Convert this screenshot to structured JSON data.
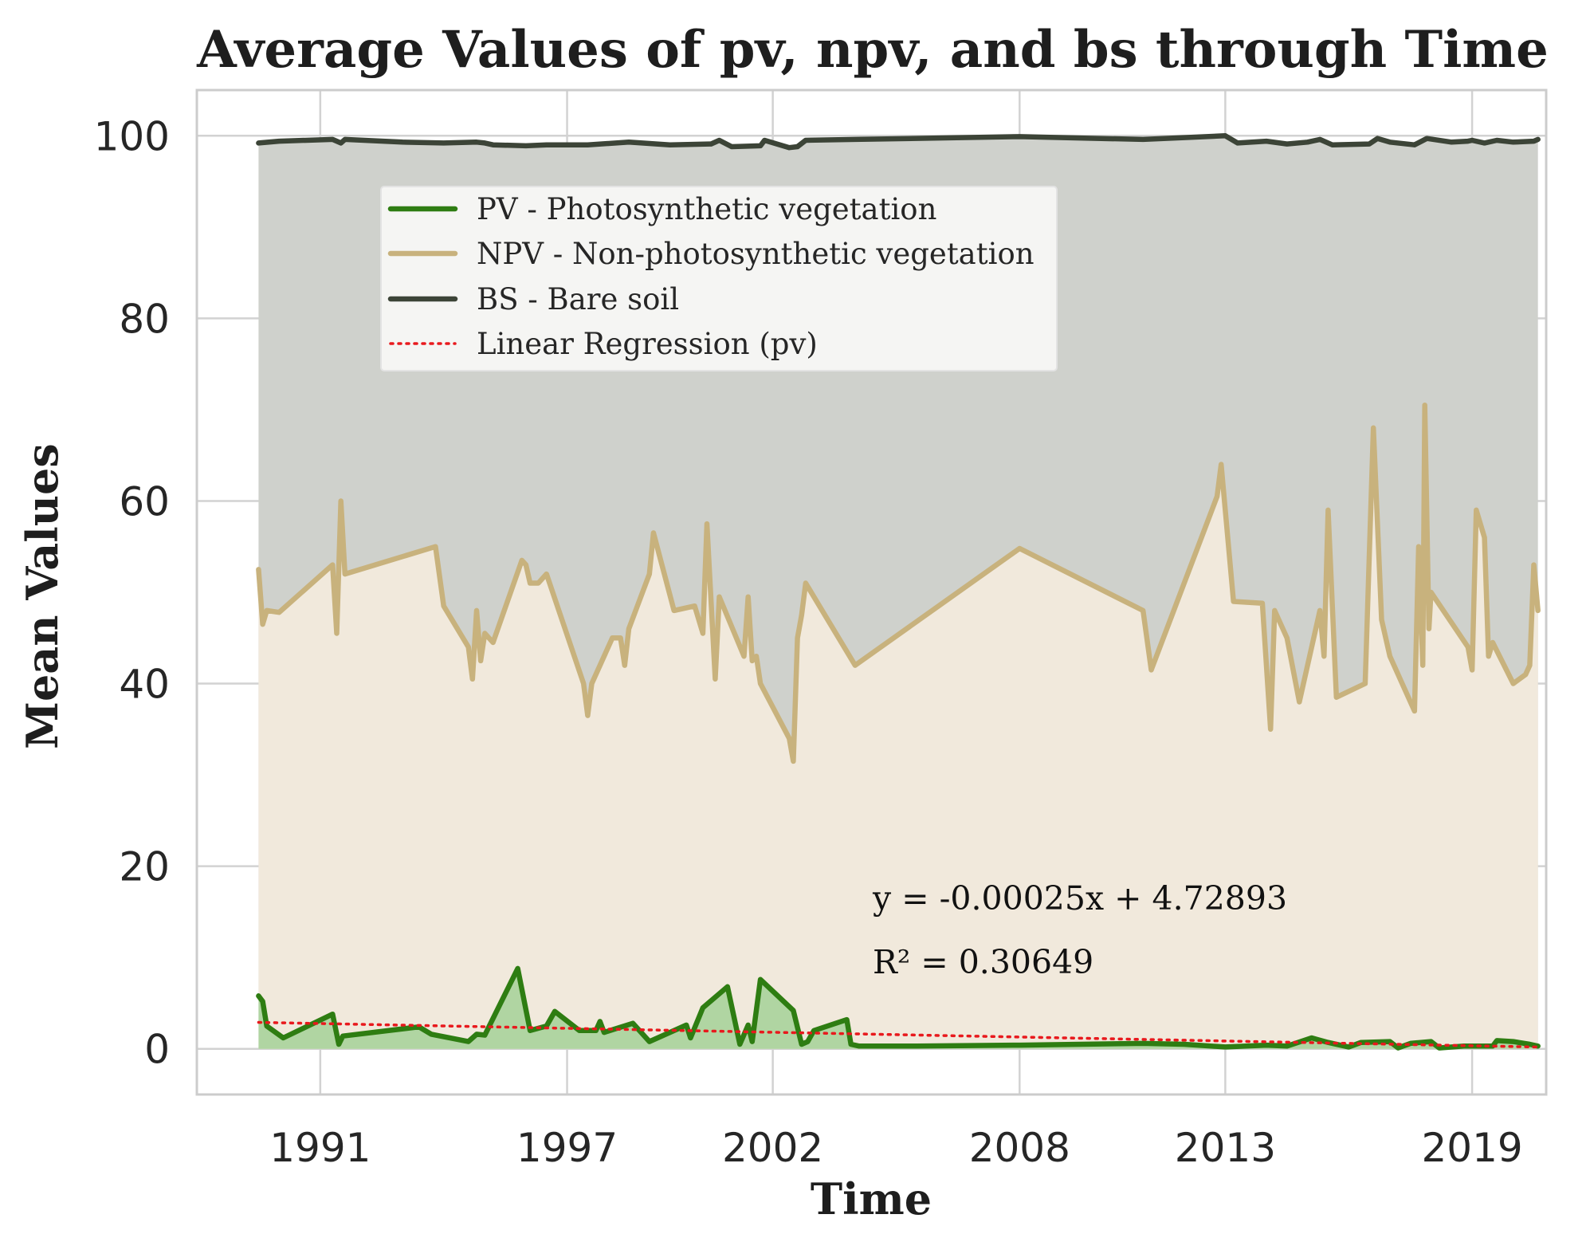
{
  "chart_data": {
    "type": "line",
    "title": "Average Values of pv, npv, and bs through Time",
    "xlabel": "Time",
    "ylabel": "Mean Values",
    "xlim": [
      1988.0,
      2020.8
    ],
    "ylim": [
      -5,
      105
    ],
    "xticks": [
      {
        "value": 1991,
        "label": "1991"
      },
      {
        "value": 1997,
        "label": "1997"
      },
      {
        "value": 2002,
        "label": "2002"
      },
      {
        "value": 2008,
        "label": "2008"
      },
      {
        "value": 2013,
        "label": "2013"
      },
      {
        "value": 2019,
        "label": "2019"
      }
    ],
    "yticks": [
      {
        "value": 0,
        "label": "0"
      },
      {
        "value": 20,
        "label": "20"
      },
      {
        "value": 40,
        "label": "40"
      },
      {
        "value": 60,
        "label": "60"
      },
      {
        "value": 80,
        "label": "80"
      },
      {
        "value": 100,
        "label": "100"
      }
    ],
    "grid": true,
    "legend_position": "upper-left",
    "series": [
      {
        "name": "PV - Photosynthetic vegetation",
        "key": "pv",
        "color": "#2e7d12",
        "fill": "#a8d39b",
        "points": [
          [
            1989.5,
            5.8
          ],
          [
            1989.6,
            5.2
          ],
          [
            1989.7,
            2.5
          ],
          [
            1990.1,
            1.2
          ],
          [
            1991.3,
            3.8
          ],
          [
            1991.45,
            0.5
          ],
          [
            1991.55,
            1.4
          ],
          [
            1993.4,
            2.4
          ],
          [
            1993.7,
            1.6
          ],
          [
            1994.6,
            0.8
          ],
          [
            1994.8,
            1.6
          ],
          [
            1995.0,
            1.5
          ],
          [
            1995.8,
            8.8
          ],
          [
            1996.1,
            2.0
          ],
          [
            1996.5,
            2.5
          ],
          [
            1996.7,
            4.1
          ],
          [
            1997.3,
            2.0
          ],
          [
            1997.7,
            2.0
          ],
          [
            1997.8,
            3.0
          ],
          [
            1997.9,
            1.8
          ],
          [
            1998.6,
            2.8
          ],
          [
            1999.0,
            0.8
          ],
          [
            1999.9,
            2.6
          ],
          [
            2000.0,
            1.2
          ],
          [
            2000.3,
            4.5
          ],
          [
            2000.9,
            6.8
          ],
          [
            2001.2,
            0.5
          ],
          [
            2001.4,
            2.6
          ],
          [
            2001.5,
            0.8
          ],
          [
            2001.7,
            7.6
          ],
          [
            2002.5,
            4.2
          ],
          [
            2002.7,
            0.5
          ],
          [
            2002.85,
            0.8
          ],
          [
            2003.0,
            2.0
          ],
          [
            2003.8,
            3.2
          ],
          [
            2003.9,
            0.5
          ],
          [
            2004.1,
            0.3
          ],
          [
            2005.5,
            0.3
          ],
          [
            2008.0,
            0.4
          ],
          [
            2011.0,
            0.6
          ],
          [
            2012.0,
            0.5
          ],
          [
            2013.0,
            0.2
          ],
          [
            2014.0,
            0.4
          ],
          [
            2014.5,
            0.3
          ],
          [
            2015.1,
            1.2
          ],
          [
            2015.5,
            0.7
          ],
          [
            2016.0,
            0.2
          ],
          [
            2016.3,
            0.7
          ],
          [
            2017.0,
            0.8
          ],
          [
            2017.2,
            0.1
          ],
          [
            2017.5,
            0.6
          ],
          [
            2018.0,
            0.8
          ],
          [
            2018.2,
            0.1
          ],
          [
            2018.8,
            0.3
          ],
          [
            2019.5,
            0.3
          ],
          [
            2019.6,
            0.9
          ],
          [
            2020.0,
            0.8
          ],
          [
            2020.4,
            0.5
          ],
          [
            2020.6,
            0.3
          ]
        ]
      },
      {
        "name": "NPV - Non-photosynthetic vegetation",
        "key": "npv",
        "color": "#c8b27d",
        "fill": "#f1e9dc",
        "points": [
          [
            1989.5,
            52.5
          ],
          [
            1989.6,
            46.5
          ],
          [
            1989.7,
            48.0
          ],
          [
            1990.0,
            47.8
          ],
          [
            1991.3,
            53.0
          ],
          [
            1991.4,
            45.5
          ],
          [
            1991.5,
            60.0
          ],
          [
            1991.6,
            52.0
          ],
          [
            1993.8,
            55.0
          ],
          [
            1994.0,
            48.5
          ],
          [
            1994.6,
            44.0
          ],
          [
            1994.7,
            40.5
          ],
          [
            1994.8,
            48.0
          ],
          [
            1994.9,
            42.5
          ],
          [
            1995.0,
            45.5
          ],
          [
            1995.2,
            44.5
          ],
          [
            1995.9,
            53.5
          ],
          [
            1996.0,
            53.0
          ],
          [
            1996.1,
            51.0
          ],
          [
            1996.3,
            51.0
          ],
          [
            1996.5,
            52.0
          ],
          [
            1997.4,
            40.0
          ],
          [
            1997.5,
            36.5
          ],
          [
            1997.6,
            40.0
          ],
          [
            1998.1,
            45.0
          ],
          [
            1998.3,
            45.0
          ],
          [
            1998.4,
            42.0
          ],
          [
            1998.5,
            46.0
          ],
          [
            1999.0,
            52.0
          ],
          [
            1999.1,
            56.5
          ],
          [
            1999.6,
            48.0
          ],
          [
            2000.1,
            48.5
          ],
          [
            2000.3,
            45.5
          ],
          [
            2000.4,
            57.5
          ],
          [
            2000.6,
            40.5
          ],
          [
            2000.7,
            49.5
          ],
          [
            2001.3,
            43.0
          ],
          [
            2001.4,
            49.5
          ],
          [
            2001.5,
            42.5
          ],
          [
            2001.6,
            43.0
          ],
          [
            2001.7,
            40.0
          ],
          [
            2002.4,
            34.0
          ],
          [
            2002.5,
            31.5
          ],
          [
            2002.6,
            45.0
          ],
          [
            2002.7,
            47.5
          ],
          [
            2002.8,
            51.0
          ],
          [
            2004.0,
            42.0
          ],
          [
            2008.0,
            54.8
          ],
          [
            2011.0,
            48.0
          ],
          [
            2011.2,
            41.5
          ],
          [
            2012.8,
            60.5
          ],
          [
            2012.9,
            64.0
          ],
          [
            2013.2,
            49.0
          ],
          [
            2013.9,
            48.8
          ],
          [
            2014.1,
            35.0
          ],
          [
            2014.2,
            48.0
          ],
          [
            2014.5,
            45.0
          ],
          [
            2014.8,
            38.0
          ],
          [
            2015.3,
            48.0
          ],
          [
            2015.4,
            43.0
          ],
          [
            2015.5,
            59.0
          ],
          [
            2015.7,
            38.5
          ],
          [
            2016.4,
            40.0
          ],
          [
            2016.6,
            68.0
          ],
          [
            2016.8,
            47.0
          ],
          [
            2017.0,
            43.0
          ],
          [
            2017.6,
            37.0
          ],
          [
            2017.7,
            55.0
          ],
          [
            2017.8,
            42.0
          ],
          [
            2017.85,
            70.5
          ],
          [
            2017.95,
            46.0
          ],
          [
            2018.0,
            50.0
          ],
          [
            2018.9,
            44.0
          ],
          [
            2019.0,
            41.5
          ],
          [
            2019.1,
            59.0
          ],
          [
            2019.3,
            56.0
          ],
          [
            2019.4,
            43.0
          ],
          [
            2019.5,
            44.5
          ],
          [
            2020.0,
            40.0
          ],
          [
            2020.3,
            41.0
          ],
          [
            2020.4,
            42.0
          ],
          [
            2020.5,
            53.0
          ],
          [
            2020.6,
            48.0
          ]
        ]
      },
      {
        "name": "BS - Bare soil",
        "key": "bs",
        "color": "#3c4437",
        "fill": "#cfd1cc",
        "points": [
          [
            1989.5,
            99.2
          ],
          [
            1990.0,
            99.4
          ],
          [
            1991.3,
            99.6
          ],
          [
            1991.5,
            99.2
          ],
          [
            1991.6,
            99.6
          ],
          [
            1993.0,
            99.3
          ],
          [
            1994.0,
            99.2
          ],
          [
            1994.8,
            99.3
          ],
          [
            1995.0,
            99.2
          ],
          [
            1995.2,
            99.0
          ],
          [
            1996.0,
            98.9
          ],
          [
            1996.5,
            99.0
          ],
          [
            1997.5,
            99.0
          ],
          [
            1998.5,
            99.3
          ],
          [
            1999.5,
            99.0
          ],
          [
            2000.5,
            99.1
          ],
          [
            2000.7,
            99.5
          ],
          [
            2001.0,
            98.8
          ],
          [
            2001.7,
            98.9
          ],
          [
            2001.8,
            99.5
          ],
          [
            2002.4,
            98.7
          ],
          [
            2002.6,
            98.8
          ],
          [
            2002.8,
            99.5
          ],
          [
            2004.0,
            99.6
          ],
          [
            2008.0,
            99.9
          ],
          [
            2011.0,
            99.6
          ],
          [
            2012.0,
            99.8
          ],
          [
            2013.0,
            100.0
          ],
          [
            2013.3,
            99.2
          ],
          [
            2014.0,
            99.4
          ],
          [
            2014.5,
            99.1
          ],
          [
            2015.0,
            99.3
          ],
          [
            2015.3,
            99.6
          ],
          [
            2015.6,
            99.0
          ],
          [
            2016.5,
            99.1
          ],
          [
            2016.7,
            99.7
          ],
          [
            2017.0,
            99.3
          ],
          [
            2017.6,
            99.0
          ],
          [
            2017.9,
            99.7
          ],
          [
            2018.5,
            99.3
          ],
          [
            2018.9,
            99.4
          ],
          [
            2019.0,
            99.5
          ],
          [
            2019.3,
            99.2
          ],
          [
            2019.6,
            99.5
          ],
          [
            2020.0,
            99.3
          ],
          [
            2020.5,
            99.4
          ],
          [
            2020.6,
            99.6
          ]
        ]
      }
    ],
    "regression": {
      "name": "Linear Regression (pv)",
      "color": "#e8191d",
      "x": [
        1989.5,
        2020.6
      ],
      "y": [
        2.9,
        0.2
      ],
      "equation": "y = -0.00025x + 4.72893",
      "r2": "R² = 0.30649"
    }
  }
}
